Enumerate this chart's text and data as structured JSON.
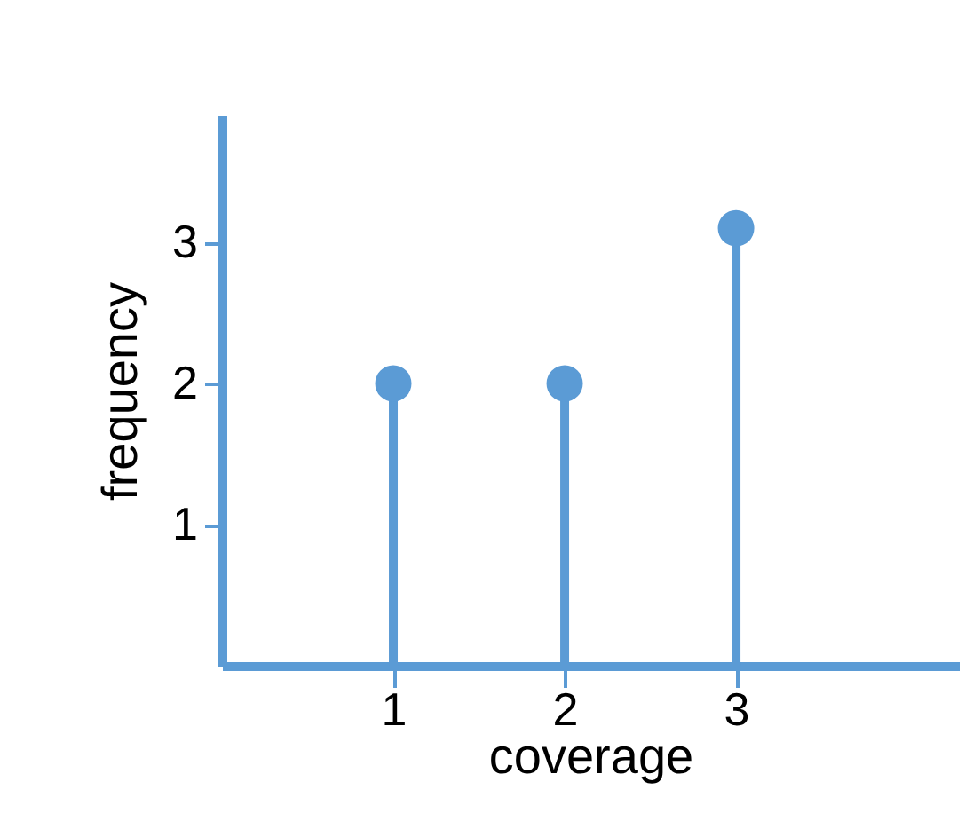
{
  "chart_data": {
    "type": "lollipop",
    "xlabel": "coverage",
    "ylabel": "frequency",
    "x": [
      1,
      2,
      3
    ],
    "values": [
      2,
      2,
      3.1
    ],
    "color": "#5b9bd5",
    "xlim": [
      0,
      4.3
    ],
    "ylim": [
      0,
      3.9
    ],
    "xticks": [
      1,
      2,
      3
    ],
    "yticks": [
      1,
      2,
      3
    ],
    "grid": false,
    "marker": "circle"
  }
}
